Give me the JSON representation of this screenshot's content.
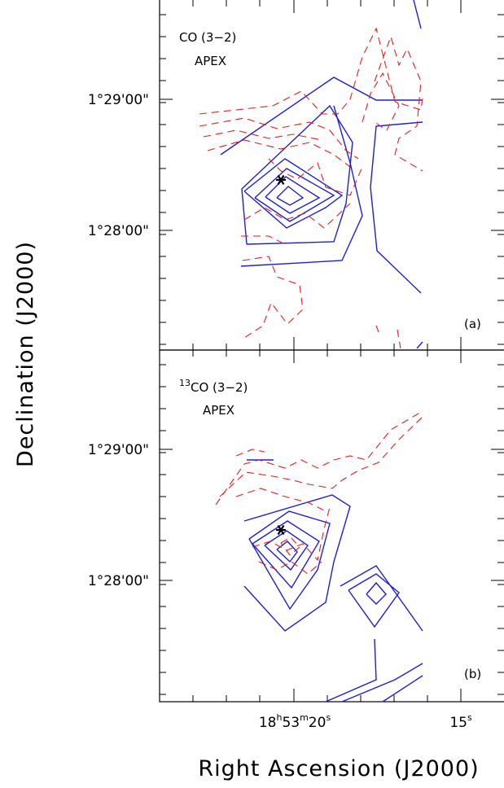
{
  "chart_data": {
    "type": "contour",
    "xlabel": "Right Ascension (J2000)",
    "ylabel": "Declination (J2000)",
    "x_ticks": [
      {
        "label_parts": [
          "18",
          "h",
          "53",
          "m",
          "20",
          "s"
        ]
      },
      {
        "label_parts": [
          "15",
          "s"
        ]
      }
    ],
    "y_ticks": [
      "1°29'00\"",
      "1°28'00\""
    ],
    "colors": {
      "positive_contours": "#1f1fd0",
      "negative_contours": "#e0201c",
      "source_marker": "#000000"
    },
    "panels": [
      {
        "tag": "(a)",
        "line_prefix": "",
        "line_main": "CO (3−2)",
        "telescope": "APEX",
        "source_marker": "asterisk"
      },
      {
        "tag": "(b)",
        "line_prefix": "13",
        "line_main": "CO (3−2)",
        "telescope": "APEX",
        "source_marker": "asterisk"
      }
    ]
  }
}
